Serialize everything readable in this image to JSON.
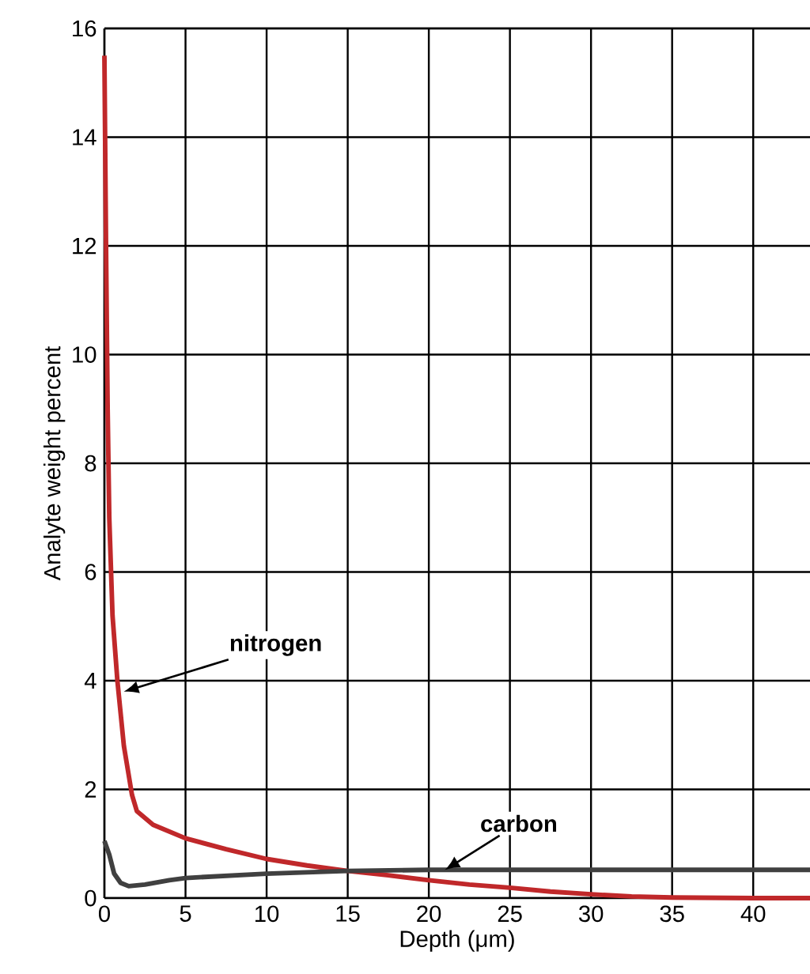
{
  "chart_data": {
    "type": "line",
    "xlabel": "Depth (μm)",
    "ylabel": "Analyte weight percent",
    "xlim": [
      0,
      43.5
    ],
    "ylim": [
      0,
      16
    ],
    "xticks": [
      0,
      5,
      10,
      15,
      20,
      25,
      30,
      35,
      40
    ],
    "yticks": [
      0,
      2,
      4,
      6,
      8,
      10,
      12,
      14,
      16
    ],
    "grid": true,
    "marker": "none",
    "line_style": "solid",
    "series": [
      {
        "color": "#c0282a",
        "x": [
          0,
          0.1,
          0.2,
          0.3,
          0.5,
          0.8,
          1.2,
          1.7,
          2,
          3,
          5,
          7.5,
          10,
          12.5,
          15,
          17.5,
          20,
          22.5,
          25,
          27.5,
          30,
          32.5,
          35,
          40,
          43.5
        ],
        "values": [
          15.5,
          12,
          9,
          7,
          5.2,
          4,
          2.8,
          1.9,
          1.6,
          1.35,
          1.1,
          0.9,
          0.72,
          0.6,
          0.5,
          0.42,
          0.33,
          0.25,
          0.19,
          0.12,
          0.07,
          0.03,
          0.01,
          0,
          0
        ]
      },
      {
        "color": "#404040",
        "x": [
          0,
          0.3,
          0.6,
          1,
          1.5,
          2.5,
          4,
          5,
          10,
          15,
          20,
          30,
          43.5
        ],
        "values": [
          1.05,
          0.8,
          0.45,
          0.28,
          0.22,
          0.25,
          0.33,
          0.37,
          0.45,
          0.5,
          0.52,
          0.52,
          0.52
        ]
      }
    ],
    "annotations": [
      {
        "text": "**nitrogen**",
        "x": 1.2,
        "y": 3.8
      },
      {
        "text": "**carbon**",
        "x": 21,
        "y": 0.52
      }
    ]
  }
}
